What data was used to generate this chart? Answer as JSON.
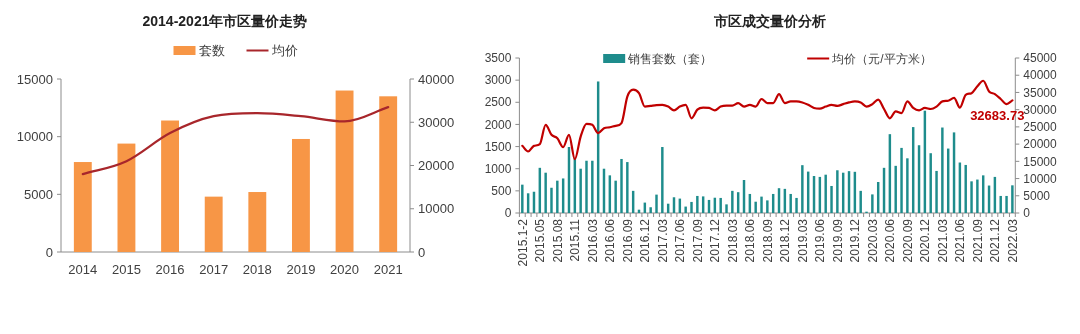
{
  "chart_data": [
    {
      "type": "bar",
      "title": "2014-2021年市区量价走势",
      "categories": [
        "2014",
        "2015",
        "2016",
        "2017",
        "2018",
        "2019",
        "2020",
        "2021"
      ],
      "series": [
        {
          "name": "套数",
          "color": "#f79646",
          "values": [
            7800,
            9400,
            11400,
            4800,
            5200,
            9800,
            14000,
            13500
          ]
        },
        {
          "name": "均价",
          "type": "line",
          "axis": "y2",
          "color": "#a8262b",
          "values": [
            18000,
            21000,
            27500,
            31400,
            32100,
            31400,
            30200,
            33500
          ]
        }
      ],
      "ylim": [
        0,
        15000
      ],
      "yticks": [
        0,
        5000,
        10000,
        15000
      ],
      "y2lim": [
        0,
        40000
      ],
      "y2ticks": [
        0,
        10000,
        20000,
        30000,
        40000
      ],
      "legend": "top"
    },
    {
      "type": "bar",
      "title": "市区成交量价分析",
      "categories": [
        "2015.1-2",
        null,
        null,
        "2015.05",
        null,
        null,
        "2015.08",
        null,
        null,
        "2015.11",
        null,
        null,
        "2016.03",
        null,
        null,
        "2016.06",
        null,
        null,
        "2016.09",
        null,
        null,
        "2016.12",
        null,
        null,
        "2017.03",
        null,
        null,
        "2017.06",
        null,
        null,
        "2017.09",
        null,
        null,
        "2017.12",
        null,
        null,
        "2018.03",
        null,
        null,
        "2018.06",
        null,
        null,
        "2018.09",
        null,
        null,
        "2018.12",
        null,
        null,
        "2019.03",
        null,
        null,
        "2019.06",
        null,
        null,
        "2019.09",
        null,
        null,
        "2019.12",
        null,
        null,
        "2020.03",
        null,
        null,
        "2020.06",
        null,
        null,
        "2020.09",
        null,
        null,
        "2020.12",
        null,
        null,
        "2021.03",
        null,
        null,
        "2021.06",
        null,
        null,
        "2021.09",
        null,
        null,
        "2021.12",
        null,
        null,
        "2022.03"
      ],
      "series": [
        {
          "name": "销售套数（套）",
          "color": "#1e8c8c",
          "values": [
            640,
            445,
            480,
            1020,
            910,
            570,
            730,
            780,
            1490,
            1250,
            1000,
            1180,
            1180,
            2970,
            1000,
            850,
            730,
            1220,
            1150,
            500,
            75,
            235,
            130,
            415,
            1490,
            210,
            355,
            325,
            145,
            250,
            385,
            375,
            295,
            345,
            340,
            195,
            500,
            470,
            745,
            430,
            255,
            370,
            285,
            430,
            560,
            545,
            430,
            340,
            1080,
            935,
            835,
            815,
            865,
            610,
            965,
            910,
            945,
            930,
            500,
            30,
            420,
            700,
            1020,
            1780,
            1065,
            1470,
            1235,
            1940,
            1530,
            2310,
            1350,
            950,
            1930,
            1455,
            1820,
            1140,
            1085,
            715,
            755,
            850,
            620,
            815,
            385,
            385,
            625
          ]
        },
        {
          "name": "均价（元/平方米）",
          "type": "line",
          "axis": "y2",
          "color": "#c00000",
          "values": [
            19500,
            17850,
            19500,
            19980,
            25600,
            22700,
            21700,
            19100,
            22700,
            15600,
            22200,
            25900,
            25600,
            23200,
            24600,
            24900,
            25300,
            26100,
            33800,
            35800,
            34800,
            30900,
            31100,
            31300,
            31400,
            30900,
            29800,
            30900,
            31400,
            27500,
            30000,
            30600,
            30500,
            29800,
            30900,
            31200,
            31200,
            31900,
            30900,
            31400,
            30900,
            33100,
            31900,
            31900,
            34500,
            31900,
            32400,
            32400,
            32100,
            31400,
            30500,
            30300,
            30900,
            31400,
            31100,
            31600,
            32100,
            32400,
            32100,
            30900,
            31600,
            32900,
            30200,
            27500,
            29500,
            29000,
            32400,
            30500,
            29800,
            30500,
            30200,
            30900,
            32400,
            32600,
            33400,
            30600,
            34300,
            34800,
            36800,
            38400,
            35300,
            34500,
            33100,
            31600,
            32683.73
          ],
          "value_labels": [
            null,
            null,
            null,
            null,
            null,
            null,
            null,
            null,
            null,
            null,
            null,
            null,
            null,
            null,
            null,
            null,
            null,
            null,
            null,
            null,
            null,
            null,
            null,
            null,
            null,
            null,
            null,
            null,
            null,
            null,
            null,
            null,
            null,
            null,
            null,
            null,
            null,
            null,
            null,
            null,
            null,
            null,
            null,
            null,
            null,
            null,
            null,
            null,
            null,
            null,
            null,
            null,
            null,
            null,
            null,
            null,
            null,
            null,
            null,
            null,
            null,
            null,
            null,
            null,
            null,
            null,
            null,
            null,
            null,
            null,
            null,
            null,
            null,
            null,
            null,
            null,
            null,
            null,
            null,
            null,
            null,
            null,
            null,
            null,
            "32683.73"
          ]
        }
      ],
      "ylim": [
        0,
        3500
      ],
      "yticks": [
        0,
        500,
        1000,
        1500,
        2000,
        2500,
        3000,
        3500
      ],
      "y2lim": [
        0,
        45000
      ],
      "y2ticks": [
        0,
        5000,
        10000,
        15000,
        20000,
        25000,
        30000,
        35000,
        40000,
        45000
      ],
      "legend": "top"
    }
  ]
}
